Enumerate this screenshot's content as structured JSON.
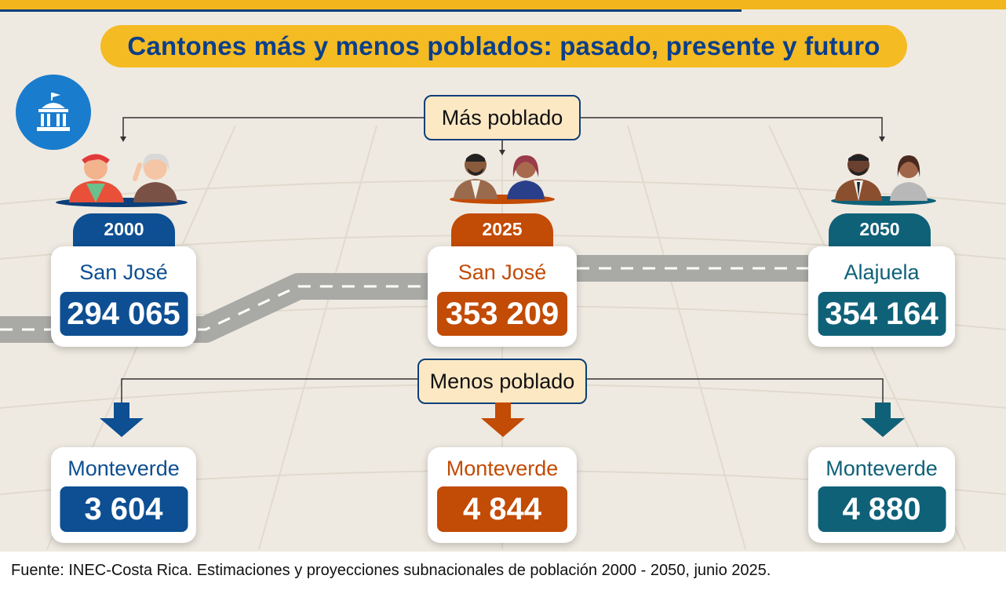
{
  "title": "Cantones más y menos poblados: pasado, presente y futuro",
  "labels": {
    "most_populated": "Más poblado",
    "least_populated": "Menos poblado"
  },
  "columns": [
    {
      "year": "2000",
      "color": "#0d4f92",
      "most": {
        "canton": "San José",
        "value": "294 065"
      },
      "least": {
        "canton": "Monteverde",
        "value": "3 604"
      }
    },
    {
      "year": "2025",
      "color": "#c24b05",
      "most": {
        "canton": "San José",
        "value": "353 209"
      },
      "least": {
        "canton": "Monteverde",
        "value": "4 844"
      }
    },
    {
      "year": "2050",
      "color": "#0f6178",
      "most": {
        "canton": "Alajuela",
        "value": "354 164"
      },
      "least": {
        "canton": "Monteverde",
        "value": "4 880"
      }
    }
  ],
  "source": "Fuente: INEC-Costa Rica. Estimaciones y proyecciones subnacionales de población 2000 - 2050, junio 2025.",
  "icons": {
    "emblem": "government-building-icon",
    "arrows": "arrow-down-icon",
    "people": "people-illustration"
  }
}
